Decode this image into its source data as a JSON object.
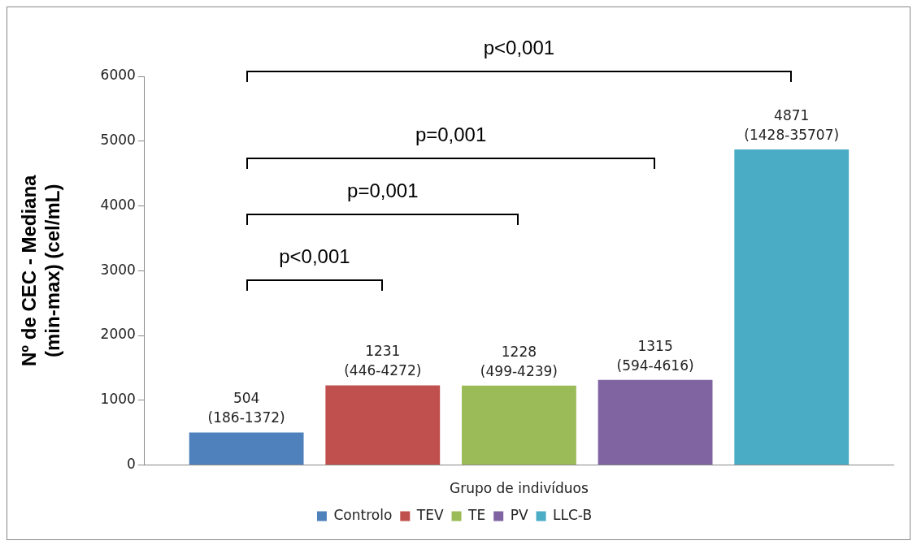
{
  "chart_data": {
    "type": "bar",
    "xlabel": "Grupo de indivíduos",
    "ylabel": "Nº de CEC - Mediana\n(min-max) (cel/mL)",
    "categories": [
      null
    ],
    "series": [
      {
        "name": "Controlo",
        "color": "#4f81bd",
        "values": [
          504
        ],
        "value_labels": [
          "504\n(186-1372)"
        ]
      },
      {
        "name": "TEV",
        "color": "#c0504d",
        "values": [
          1231
        ],
        "value_labels": [
          "1231\n(446-4272)"
        ]
      },
      {
        "name": "TE",
        "color": "#9bbb59",
        "values": [
          1228
        ],
        "value_labels": [
          "1228\n(499-4239)"
        ]
      },
      {
        "name": "PV",
        "color": "#8064a2",
        "values": [
          1315
        ],
        "value_labels": [
          "1315\n(594-4616)"
        ]
      },
      {
        "name": "LLC-B",
        "color": "#4bacc6",
        "values": [
          4871
        ],
        "value_labels": [
          "4871\n(1428-35707)"
        ]
      }
    ],
    "annotations": [
      "p<0,001",
      "p=0,001",
      "p=0,001",
      "p<0,001"
    ],
    "ylim": [
      0,
      6000
    ],
    "yticks": [
      0,
      1000,
      2000,
      3000,
      4000,
      5000,
      6000
    ],
    "grid": false,
    "legend": "bottom"
  }
}
